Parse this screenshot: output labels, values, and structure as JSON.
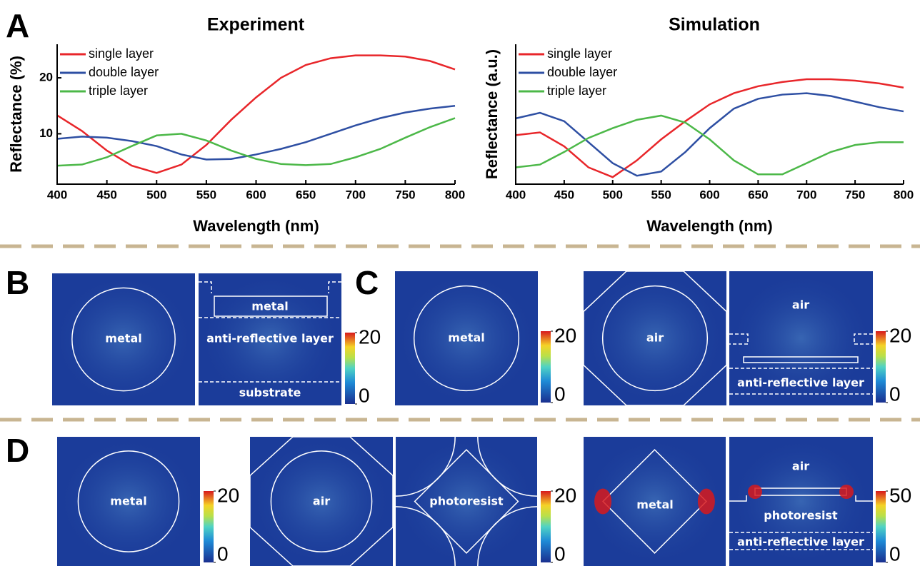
{
  "chart_data": [
    {
      "type": "line",
      "title": "Experiment",
      "x_label": "Wavelength (nm)",
      "y_label": "Reflectance (%)",
      "x": [
        400,
        425,
        450,
        475,
        500,
        525,
        550,
        575,
        600,
        625,
        650,
        675,
        700,
        725,
        750,
        775,
        800
      ],
      "series": [
        {
          "name": "single layer",
          "color": "#e8262a",
          "values": [
            13.3,
            10.5,
            7,
            4.3,
            3.0,
            4.5,
            8,
            12.5,
            16.5,
            20,
            22.3,
            23.5,
            24,
            24,
            23.8,
            23,
            21.5
          ]
        },
        {
          "name": "double layer",
          "color": "#2e4fa3",
          "values": [
            9.1,
            9.5,
            9.3,
            8.7,
            7.8,
            6.3,
            5.4,
            5.5,
            6.3,
            7.3,
            8.5,
            10,
            11.5,
            12.8,
            13.8,
            14.5,
            15
          ]
        },
        {
          "name": "triple layer",
          "color": "#4cb848",
          "values": [
            4.3,
            4.5,
            5.8,
            7.8,
            9.7,
            10,
            8.8,
            7,
            5.5,
            4.6,
            4.4,
            4.6,
            5.8,
            7.3,
            9.3,
            11.2,
            12.8
          ]
        }
      ],
      "xlim": [
        400,
        800
      ],
      "xticks": [
        400,
        450,
        500,
        550,
        600,
        650,
        700,
        750,
        800
      ],
      "ylim": [
        1,
        26
      ],
      "yticks": [
        10,
        20
      ],
      "legend": "upper left"
    },
    {
      "type": "line",
      "title": "Simulation",
      "x_label": "Wavelength (nm)",
      "y_label": "Reflectance (a.u.)",
      "x": [
        400,
        425,
        450,
        475,
        500,
        525,
        550,
        575,
        600,
        625,
        650,
        675,
        700,
        725,
        750,
        775,
        800
      ],
      "series": [
        {
          "name": "single layer",
          "color": "#e8262a",
          "values": [
            0.35,
            0.37,
            0.27,
            0.12,
            0.05,
            0.17,
            0.32,
            0.45,
            0.57,
            0.65,
            0.7,
            0.73,
            0.75,
            0.75,
            0.74,
            0.72,
            0.69
          ]
        },
        {
          "name": "double layer",
          "color": "#2e4fa3",
          "values": [
            0.47,
            0.51,
            0.45,
            0.3,
            0.15,
            0.06,
            0.09,
            0.23,
            0.4,
            0.54,
            0.61,
            0.64,
            0.65,
            0.63,
            0.59,
            0.55,
            0.52
          ]
        },
        {
          "name": "triple layer",
          "color": "#4cb848",
          "values": [
            0.12,
            0.14,
            0.23,
            0.33,
            0.4,
            0.46,
            0.49,
            0.44,
            0.32,
            0.17,
            0.07,
            0.07,
            0.15,
            0.23,
            0.28,
            0.3,
            0.3
          ]
        }
      ],
      "xlim": [
        400,
        800
      ],
      "xticks": [
        400,
        450,
        500,
        550,
        600,
        650,
        700,
        750,
        800
      ],
      "ylim": [
        0,
        1
      ],
      "legend": "upper left"
    }
  ],
  "panels": [
    {
      "label": "A"
    },
    {
      "label": "B",
      "maps": [
        {
          "labels": [
            "metal"
          ]
        },
        {
          "labels": [
            "metal",
            "anti-reflective layer",
            "substrate"
          ]
        }
      ],
      "colorbars": [
        {
          "lim": [
            0,
            20
          ],
          "ticks": [
            0,
            20
          ]
        }
      ]
    },
    {
      "label": "C",
      "maps": [
        {
          "labels": [
            "metal"
          ]
        },
        {
          "labels": [
            "air"
          ]
        },
        {
          "labels": [
            "air",
            "anti-reflective layer"
          ]
        }
      ],
      "colorbars": [
        {
          "lim": [
            0,
            20
          ],
          "ticks": [
            0,
            20
          ]
        },
        {
          "lim": [
            0,
            20
          ],
          "ticks": [
            0,
            20
          ]
        }
      ]
    },
    {
      "label": "D",
      "maps": [
        {
          "labels": [
            "metal"
          ]
        },
        {
          "labels": [
            "air"
          ]
        },
        {
          "labels": [
            "photoresist"
          ]
        },
        {
          "labels": [
            "metal"
          ]
        },
        {
          "labels": [
            "air",
            "photoresist",
            "anti-reflective layer"
          ]
        }
      ],
      "colorbars": [
        {
          "lim": [
            0,
            20
          ],
          "ticks": [
            0,
            20
          ]
        },
        {
          "lim": [
            0,
            20
          ],
          "ticks": [
            0,
            20
          ]
        },
        {
          "lim": [
            0,
            50
          ],
          "ticks": [
            0,
            50
          ]
        }
      ]
    }
  ]
}
